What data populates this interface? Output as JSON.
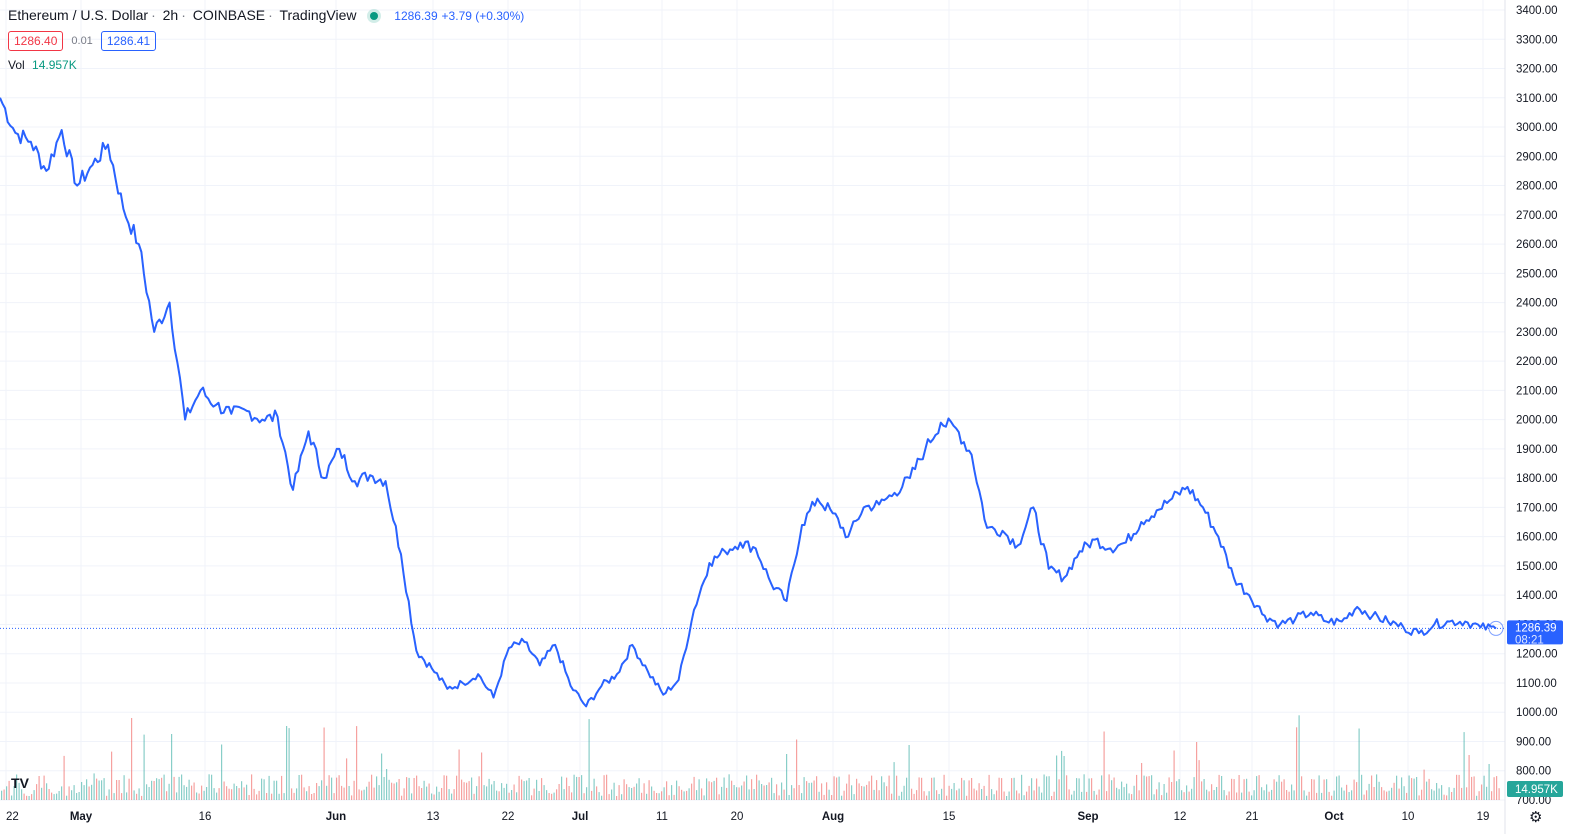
{
  "header": {
    "symbol": "Ethereum / U.S. Dollar",
    "interval": "2h",
    "exchange": "COINBASE",
    "provider": "TradingView",
    "last_price": "1286.39",
    "change": "+3.79 (+0.30%)",
    "bid": "1286.40",
    "spread": "0.01",
    "ask": "1286.41",
    "vol_label": "Vol",
    "vol_value": "14.957K"
  },
  "price_badge": {
    "price": "1286.39",
    "countdown": "08:21"
  },
  "vol_badge": "14.957K",
  "colors": {
    "line": "#2962ff",
    "up_volume": "#26a69a",
    "down_volume": "#ef5350",
    "grid": "#f0f3fa",
    "live_dot": "#089981"
  },
  "icons": [
    "tradingview-logo-icon",
    "gear-icon",
    "live-status-icon"
  ],
  "chart_data": {
    "type": "line",
    "series": [
      {
        "x": [
          "Apr 22",
          "Apr 23",
          "Apr 25",
          "Apr 27",
          "Apr 29",
          "May 1",
          "May 3",
          "May 5",
          "May 7",
          "May 9",
          "May 10",
          "May 11",
          "May 12",
          "May 13",
          "May 15",
          "May 17",
          "May 19",
          "May 21",
          "May 23",
          "May 25",
          "May 27",
          "May 29",
          "May 31",
          "Jun 2",
          "Jun 4",
          "Jun 6",
          "Jun 8",
          "Jun 10",
          "Jun 12",
          "Jun 13",
          "Jun 14",
          "Jun 16",
          "Jun 18",
          "Jun 19",
          "Jun 21",
          "Jun 23",
          "Jun 25",
          "Jun 27",
          "Jun 29",
          "Jul 1",
          "Jul 3",
          "Jul 5",
          "Jul 7",
          "Jul 9",
          "Jul 11",
          "Jul 13",
          "Jul 15",
          "Jul 17",
          "Jul 18",
          "Jul 20",
          "Jul 22",
          "Jul 24",
          "Jul 26",
          "Jul 28",
          "Jul 30",
          "Aug 1",
          "Aug 3",
          "Aug 5",
          "Aug 7",
          "Aug 9",
          "Aug 11",
          "Aug 13",
          "Aug 14",
          "Aug 16",
          "Aug 18",
          "Aug 20",
          "Aug 22",
          "Aug 24",
          "Aug 26",
          "Aug 27",
          "Aug 29",
          "Aug 31",
          "Sep 2",
          "Sep 4",
          "Sep 6",
          "Sep 8",
          "Sep 10",
          "Sep 12",
          "Sep 13",
          "Sep 15",
          "Sep 17",
          "Sep 19",
          "Sep 21",
          "Sep 23",
          "Sep 25",
          "Sep 27",
          "Sep 29",
          "Oct 1",
          "Oct 3",
          "Oct 5",
          "Oct 7",
          "Oct 9",
          "Oct 11",
          "Oct 13",
          "Oct 15",
          "Oct 17",
          "Oct 19",
          "Oct 21"
        ],
        "values": [
          3100,
          2980,
          2950,
          2850,
          2990,
          2800,
          2870,
          2940,
          2720,
          2600,
          2300,
          2400,
          2000,
          2100,
          2050,
          2020,
          2030,
          2000,
          2010,
          1760,
          1960,
          1800,
          1900,
          1790,
          1810,
          1790,
          1540,
          1210,
          1150,
          1080,
          1100,
          1130,
          1050,
          1220,
          1240,
          1160,
          1230,
          1090,
          1020,
          1090,
          1130,
          1230,
          1140,
          1060,
          1110,
          1350,
          1510,
          1550,
          1580,
          1560,
          1440,
          1380,
          1640,
          1730,
          1680,
          1600,
          1700,
          1710,
          1750,
          1800,
          1900,
          1990,
          1970,
          1880,
          1630,
          1620,
          1570,
          1700,
          1490,
          1460,
          1550,
          1590,
          1560,
          1580,
          1650,
          1690,
          1730,
          1770,
          1700,
          1600,
          1460,
          1400,
          1330,
          1300,
          1320,
          1340,
          1310,
          1310,
          1360,
          1330,
          1310,
          1290,
          1270,
          1300,
          1310,
          1310,
          1290,
          1286
        ]
      }
    ],
    "y_ticks": [
      "3400.00",
      "3300.00",
      "3200.00",
      "3100.00",
      "3000.00",
      "2900.00",
      "2800.00",
      "2700.00",
      "2600.00",
      "2500.00",
      "2400.00",
      "2300.00",
      "2200.00",
      "2100.00",
      "2000.00",
      "1900.00",
      "1800.00",
      "1700.00",
      "1600.00",
      "1500.00",
      "1400.00",
      "1300.00",
      "1200.00",
      "1100.00",
      "1000.00",
      "900.00",
      "800.00",
      "700.00"
    ],
    "x_ticks": [
      {
        "label": "22",
        "bold": false
      },
      {
        "label": "May",
        "bold": true
      },
      {
        "label": "16",
        "bold": false
      },
      {
        "label": "Jun",
        "bold": true
      },
      {
        "label": "13",
        "bold": false
      },
      {
        "label": "22",
        "bold": false
      },
      {
        "label": "Jul",
        "bold": true
      },
      {
        "label": "11",
        "bold": false
      },
      {
        "label": "20",
        "bold": false
      },
      {
        "label": "Aug",
        "bold": true
      },
      {
        "label": "15",
        "bold": false
      },
      {
        "label": "Sep",
        "bold": true
      },
      {
        "label": "12",
        "bold": false
      },
      {
        "label": "21",
        "bold": false
      },
      {
        "label": "Oct",
        "bold": true
      },
      {
        "label": "10",
        "bold": false
      },
      {
        "label": "19",
        "bold": false
      }
    ],
    "ylim": [
      700,
      3400
    ],
    "last_value": 1286.39,
    "volume_last": "14.957K",
    "grid": true
  }
}
